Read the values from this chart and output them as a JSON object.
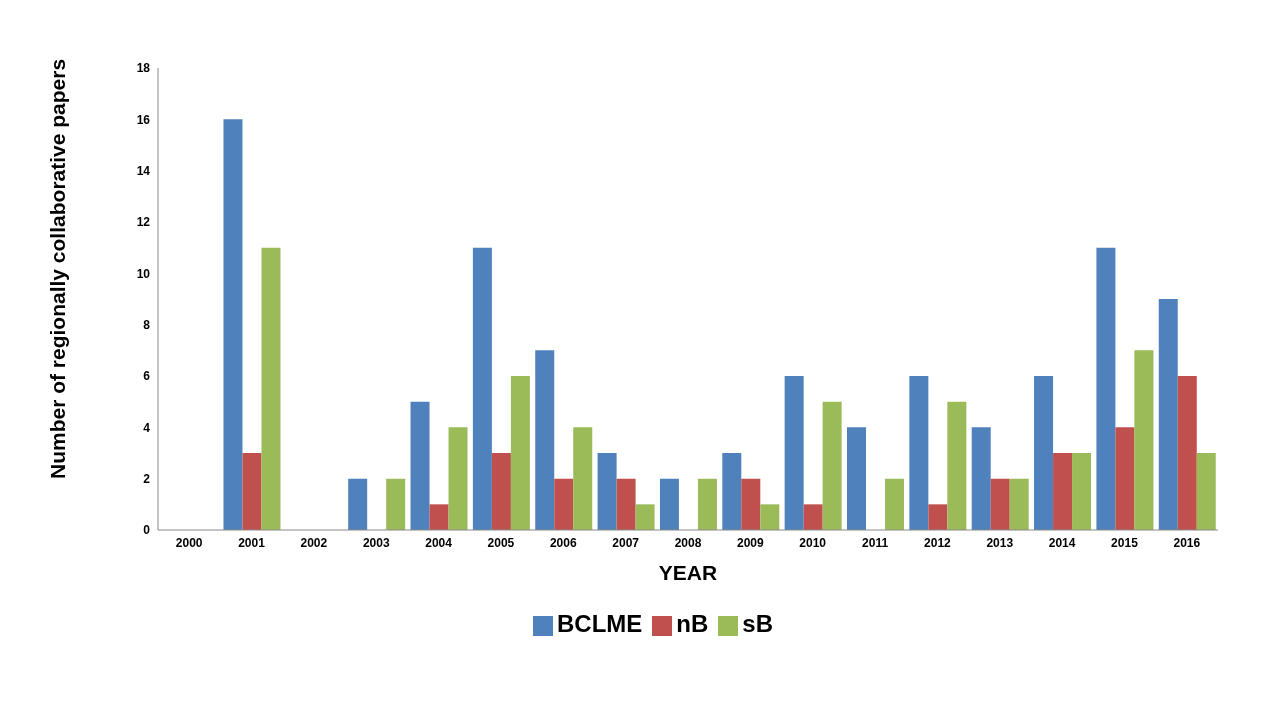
{
  "chart_data": {
    "type": "bar",
    "xlabel": "YEAR",
    "ylabel": "Number of regionally collaborative papers",
    "categories": [
      "2000",
      "2001",
      "2002",
      "2003",
      "2004",
      "2005",
      "2006",
      "2007",
      "2008",
      "2009",
      "2010",
      "2011",
      "2012",
      "2013",
      "2014",
      "2015",
      "2016"
    ],
    "series": [
      {
        "name": "BCLME",
        "color": "#4f81bd",
        "values": [
          0,
          16,
          0,
          2,
          5,
          11,
          7,
          3,
          2,
          3,
          6,
          4,
          6,
          4,
          6,
          11,
          9
        ]
      },
      {
        "name": "nB",
        "color": "#c0504d",
        "values": [
          0,
          3,
          0,
          0,
          1,
          3,
          2,
          2,
          0,
          2,
          1,
          0,
          1,
          2,
          3,
          4,
          6
        ]
      },
      {
        "name": "sB",
        "color": "#9bbb59",
        "values": [
          0,
          11,
          0,
          2,
          4,
          6,
          4,
          1,
          2,
          1,
          5,
          2,
          5,
          2,
          3,
          7,
          3
        ]
      }
    ],
    "ylim": [
      0,
      18
    ],
    "yticks": [
      0,
      2,
      4,
      6,
      8,
      10,
      12,
      14,
      16,
      18
    ],
    "grid": false,
    "legend": "bottom"
  }
}
